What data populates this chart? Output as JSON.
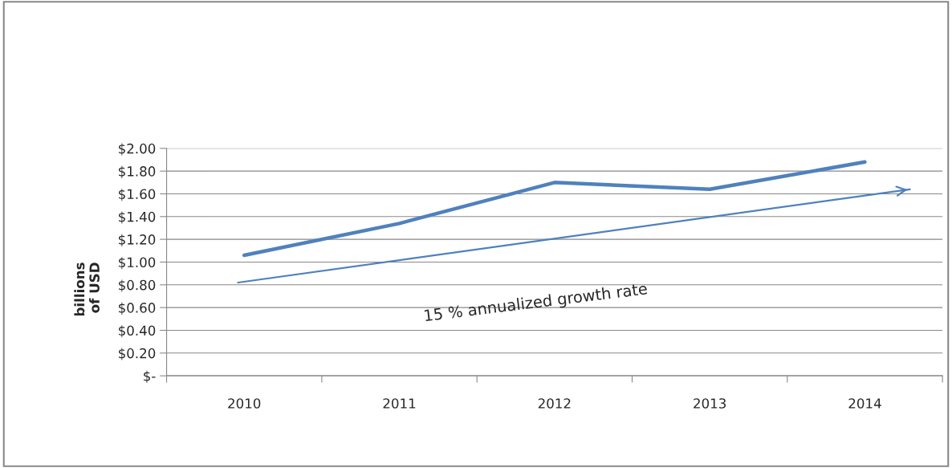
{
  "chart_data": {
    "type": "line",
    "x": [
      2010,
      2011,
      2012,
      2013,
      2014
    ],
    "xlim": [
      2009.5,
      2014.5
    ],
    "xticks": [
      {
        "value": 2009.5,
        "label": null
      },
      2010,
      {
        "value": 2010.5,
        "label": null
      },
      2011,
      {
        "value": 2011.5,
        "label": null
      },
      2012,
      {
        "value": 2012.5,
        "label": null
      },
      2013,
      {
        "value": 2013.5,
        "label": null
      },
      2014,
      {
        "value": 2014.5,
        "label": null
      }
    ],
    "ylabel": "billions\nof USD",
    "ylim": [
      0,
      2.0
    ],
    "yticks": [
      {
        "value": 0,
        "label": "$-"
      },
      {
        "value": 0.2,
        "label": "$0.20"
      },
      {
        "value": 0.4,
        "label": "$0.40"
      },
      {
        "value": 0.6,
        "label": "$0.60"
      },
      {
        "value": 0.8,
        "label": "$0.80"
      },
      {
        "value": 1.0,
        "label": "$1.00"
      },
      {
        "value": 1.2,
        "label": "$1.20"
      },
      {
        "value": 1.4,
        "label": "$1.40"
      },
      {
        "value": 1.6,
        "label": "$1.60"
      },
      {
        "value": 1.8,
        "label": "$1.80"
      },
      {
        "value": 2.0,
        "label": "$2.00"
      }
    ],
    "grid": "y",
    "series": [
      {
        "color": "#4f81bd",
        "values": [
          1.06,
          1.34,
          1.7,
          1.64,
          1.88
        ]
      },
      {
        "type": "line",
        "color": "#4f81bd",
        "x": [
          2009.96,
          2014.29
        ],
        "values": [
          0.82,
          1.64
        ]
      }
    ],
    "annotations": [
      "15 % annualized growth rate"
    ]
  }
}
